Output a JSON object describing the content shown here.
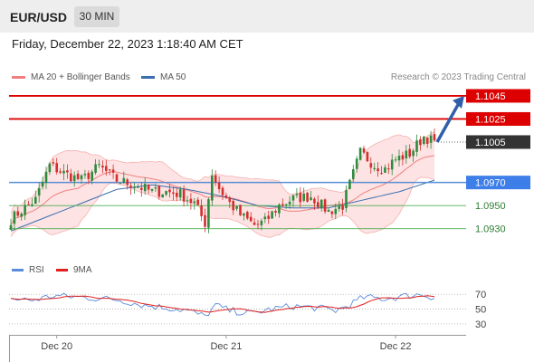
{
  "header": {
    "symbol": "EUR/USD",
    "timeframe": "30 MIN",
    "timestamp": "Friday, December 22, 2023 1:18:40 AM CET"
  },
  "legend": {
    "ma20_label": "MA 20 + Bollinger Bands",
    "ma50_label": "MA 50",
    "credit": "Research © 2023 Trading Central"
  },
  "rsi_legend": {
    "rsi_label": "RSI",
    "ma_label": "9MA"
  },
  "colors": {
    "resistance": "#dd0000",
    "support": "#5a8fd6",
    "green_level": "#4caf50",
    "ma20": "#f08080",
    "ma50": "#3a6fb0",
    "bb_fill": "#fde0e0",
    "candle_up": "#2e8b3d",
    "candle_down": "#d32f2f",
    "arrow": "#2f5fa8",
    "rsi_line": "#5b8cd9",
    "rsi_ma": "#e02020",
    "current_price_bg": "#333333"
  },
  "chart_data": {
    "type": "candlestick",
    "price_axis_range": [
      1.0918,
      1.1052
    ],
    "levels": [
      {
        "value": 1.1045,
        "label": "1.1045",
        "kind": "resistance"
      },
      {
        "value": 1.1025,
        "label": "1.1025",
        "kind": "resistance"
      },
      {
        "value": 1.1005,
        "label": "1.1005",
        "kind": "current"
      },
      {
        "value": 1.097,
        "label": "1.0970",
        "kind": "pivot"
      },
      {
        "value": 1.095,
        "label": "1.0950",
        "kind": "support"
      },
      {
        "value": 1.093,
        "label": "1.0930",
        "kind": "support"
      }
    ],
    "x_labels": [
      "Dec 20",
      "Dec 21",
      "Dec 22"
    ],
    "x_label_index": [
      13,
      61,
      109
    ],
    "close_anchors": [
      [
        0,
        1.0938
      ],
      [
        3,
        1.0946
      ],
      [
        7,
        1.0955
      ],
      [
        11,
        1.0985
      ],
      [
        15,
        1.0978
      ],
      [
        20,
        1.0972
      ],
      [
        25,
        1.0984
      ],
      [
        30,
        1.0972
      ],
      [
        35,
        1.0968
      ],
      [
        40,
        1.0962
      ],
      [
        44,
        1.0962
      ],
      [
        48,
        1.096
      ],
      [
        52,
        1.0952
      ],
      [
        55,
        1.0935
      ],
      [
        57,
        1.0978
      ],
      [
        59,
        1.0965
      ],
      [
        62,
        1.0952
      ],
      [
        65,
        1.0942
      ],
      [
        69,
        1.0933
      ],
      [
        72,
        1.0936
      ],
      [
        76,
        1.095
      ],
      [
        80,
        1.0956
      ],
      [
        85,
        1.0958
      ],
      [
        90,
        1.0945
      ],
      [
        94,
        1.095
      ],
      [
        99,
        1.0996
      ],
      [
        103,
        1.0985
      ],
      [
        106,
        1.0982
      ],
      [
        109,
        1.099
      ],
      [
        113,
        1.0995
      ],
      [
        117,
        1.101
      ],
      [
        120,
        1.1005
      ]
    ],
    "ma50_anchors": [
      [
        0,
        1.0928
      ],
      [
        10,
        1.094
      ],
      [
        20,
        1.0952
      ],
      [
        30,
        1.0964
      ],
      [
        40,
        1.0968
      ],
      [
        50,
        1.0964
      ],
      [
        60,
        1.0958
      ],
      [
        70,
        1.095
      ],
      [
        80,
        1.0948
      ],
      [
        90,
        1.0948
      ],
      [
        100,
        1.0955
      ],
      [
        110,
        1.0962
      ],
      [
        120,
        1.0972
      ]
    ],
    "projection": {
      "from_index": 120,
      "from_price": 1.1005,
      "to_price": 1.1045
    },
    "rsi": {
      "levels": [
        70,
        50,
        30
      ],
      "range": [
        20,
        85
      ],
      "anchors": [
        [
          0,
          64
        ],
        [
          6,
          62
        ],
        [
          12,
          68
        ],
        [
          20,
          66
        ],
        [
          30,
          63
        ],
        [
          38,
          55
        ],
        [
          44,
          52
        ],
        [
          50,
          48
        ],
        [
          55,
          40
        ],
        [
          58,
          55
        ],
        [
          62,
          48
        ],
        [
          68,
          44
        ],
        [
          74,
          50
        ],
        [
          80,
          54
        ],
        [
          86,
          52
        ],
        [
          92,
          48
        ],
        [
          96,
          56
        ],
        [
          100,
          66
        ],
        [
          106,
          64
        ],
        [
          112,
          68
        ],
        [
          116,
          70
        ],
        [
          120,
          66
        ]
      ]
    }
  }
}
